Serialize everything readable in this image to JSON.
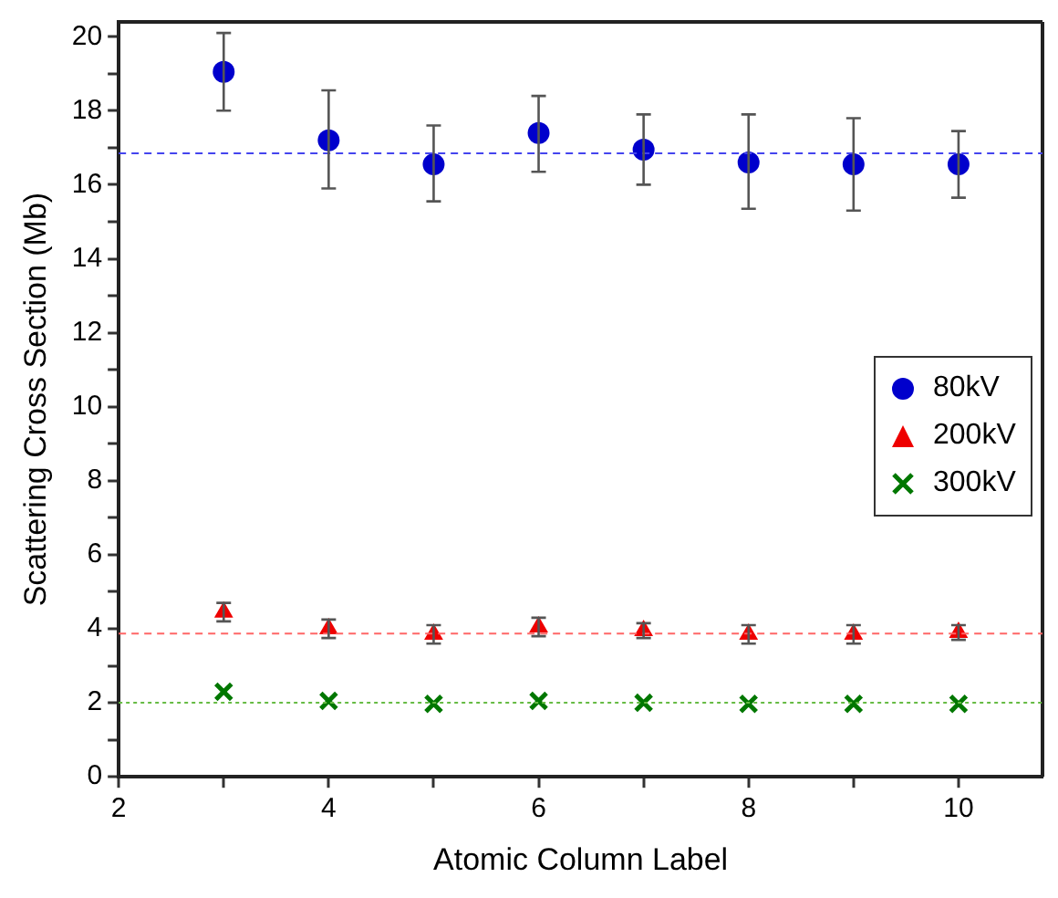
{
  "chart_data": {
    "type": "scatter",
    "xlabel": "Atomic Column Label",
    "ylabel": "Scattering Cross Section (Mb)",
    "x": [
      3,
      4,
      5,
      6,
      7,
      8,
      9,
      10
    ],
    "xlim": [
      2,
      10.8
    ],
    "xticks": [
      2,
      {
        "value": 3,
        "label": null
      },
      4,
      {
        "value": 5,
        "label": null
      },
      6,
      {
        "value": 7,
        "label": null
      },
      8,
      {
        "value": 9,
        "label": null
      },
      10
    ],
    "ylim": [
      0,
      20.4
    ],
    "yticks": [
      0,
      {
        "value": 1,
        "label": null
      },
      2,
      {
        "value": 3,
        "label": null
      },
      4,
      {
        "value": 5,
        "label": null
      },
      6,
      {
        "value": 7,
        "label": null
      },
      8,
      {
        "value": 9,
        "label": null
      },
      10,
      {
        "value": 11,
        "label": null
      },
      12,
      {
        "value": 13,
        "label": null
      },
      14,
      {
        "value": 15,
        "label": null
      },
      16,
      {
        "value": 17,
        "label": null
      },
      18,
      {
        "value": 19,
        "label": null
      },
      20
    ],
    "grid": false,
    "legend": "right",
    "series": [
      {
        "name": "80kV",
        "color": "#0000cc",
        "marker": "circle",
        "values": [
          19.05,
          17.2,
          16.55,
          17.4,
          16.95,
          16.6,
          16.55,
          16.55
        ],
        "errors": [
          [
            18.0,
            20.1
          ],
          [
            15.9,
            18.55
          ],
          [
            15.55,
            17.6
          ],
          [
            16.35,
            18.4
          ],
          [
            16.0,
            17.9
          ],
          [
            15.35,
            17.9
          ],
          [
            15.3,
            17.8
          ],
          [
            15.65,
            17.45
          ]
        ]
      },
      {
        "name": "200kV",
        "color": "#ee0000",
        "marker": "triangle",
        "values": [
          4.45,
          4.0,
          3.85,
          4.05,
          3.95,
          3.85,
          3.85,
          3.9
        ],
        "errors": [
          [
            4.2,
            4.7
          ],
          [
            3.75,
            4.25
          ],
          [
            3.6,
            4.1
          ],
          [
            3.8,
            4.3
          ],
          [
            3.75,
            4.15
          ],
          [
            3.6,
            4.1
          ],
          [
            3.6,
            4.1
          ],
          [
            3.7,
            4.1
          ]
        ]
      },
      {
        "name": "300kV",
        "color": "#007700",
        "marker": "cross",
        "values": [
          2.3,
          2.05,
          1.97,
          2.05,
          2.0,
          1.97,
          1.97,
          1.97
        ]
      }
    ],
    "ref_lines": [
      {
        "axis": "y",
        "value": 16.85,
        "color": "#4444ee",
        "line_style": "dashed"
      },
      {
        "axis": "y",
        "value": 3.87,
        "color": "#ff6666",
        "line_style": "dashed"
      },
      {
        "axis": "y",
        "value": 2.0,
        "color": "#66bb44",
        "line_style": "dotted"
      }
    ]
  }
}
